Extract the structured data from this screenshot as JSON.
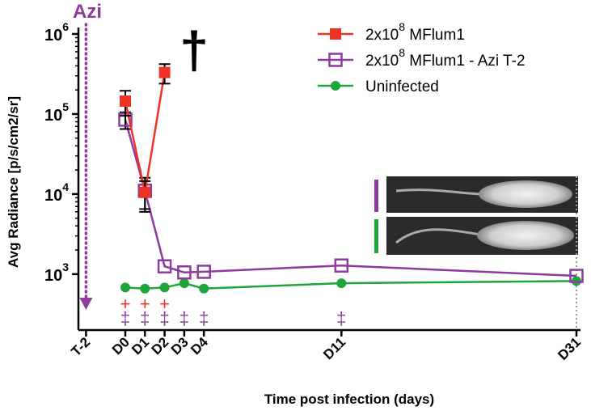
{
  "chart_data": {
    "type": "line",
    "x_label": "Time post infection (days)",
    "y_label": "Avg Radiance [p/s/cm2/sr]",
    "log_y": true,
    "xlim": [
      -2.4,
      31.3
    ],
    "xticks": [
      {
        "value": -2,
        "label": "T-2"
      },
      {
        "value": 0,
        "label": "D0"
      },
      {
        "value": 1,
        "label": "D1"
      },
      {
        "value": 2,
        "label": "D2"
      },
      {
        "value": 3,
        "label": "D3"
      },
      {
        "value": 4,
        "label": "D4"
      },
      {
        "value": 11,
        "label": "D11"
      },
      {
        "value": 31,
        "label": "D31"
      }
    ],
    "ylim": [
      200,
      1000000
    ],
    "yticks": [
      {
        "value": 1000,
        "label": "10",
        "exponent": "3"
      },
      {
        "value": 10000,
        "label": "10",
        "exponent": "4"
      },
      {
        "value": 100000,
        "label": "10",
        "exponent": "5"
      },
      {
        "value": 1000000,
        "label": "10",
        "exponent": "6"
      }
    ],
    "series": [
      {
        "name": "2x10^8 MFlum1",
        "color": "#ee3224",
        "marker": "filled-square",
        "x": [
          0,
          1,
          2
        ],
        "values": [
          145000,
          10500,
          330000
        ],
        "errors": [
          50000,
          4000,
          90000
        ]
      },
      {
        "name": "2x10^8 MFlum1 - Azi T-2",
        "color": "#8e3a9e",
        "marker": "open-square",
        "x": [
          0,
          1,
          2,
          3,
          4,
          11,
          31
        ],
        "values": [
          85000,
          11000,
          1250,
          1050,
          1070,
          1280,
          950
        ],
        "errors": [
          20000,
          5000,
          0,
          0,
          0,
          0,
          0
        ]
      },
      {
        "name": "Uninfected",
        "color": "#1fa53a",
        "marker": "circle",
        "x": [
          0,
          1,
          2,
          3,
          4,
          11,
          31
        ],
        "values": [
          680,
          660,
          680,
          770,
          660,
          770,
          820
        ]
      }
    ],
    "annotations": [
      {
        "text": "+",
        "color": "#ee3224",
        "x": [
          0,
          1,
          2
        ]
      },
      {
        "text": "‡",
        "color": "#8e3a9e",
        "x": [
          0,
          1,
          2,
          3,
          4,
          11
        ]
      }
    ],
    "treatment_label": "Azi",
    "death_symbol": "†"
  }
}
